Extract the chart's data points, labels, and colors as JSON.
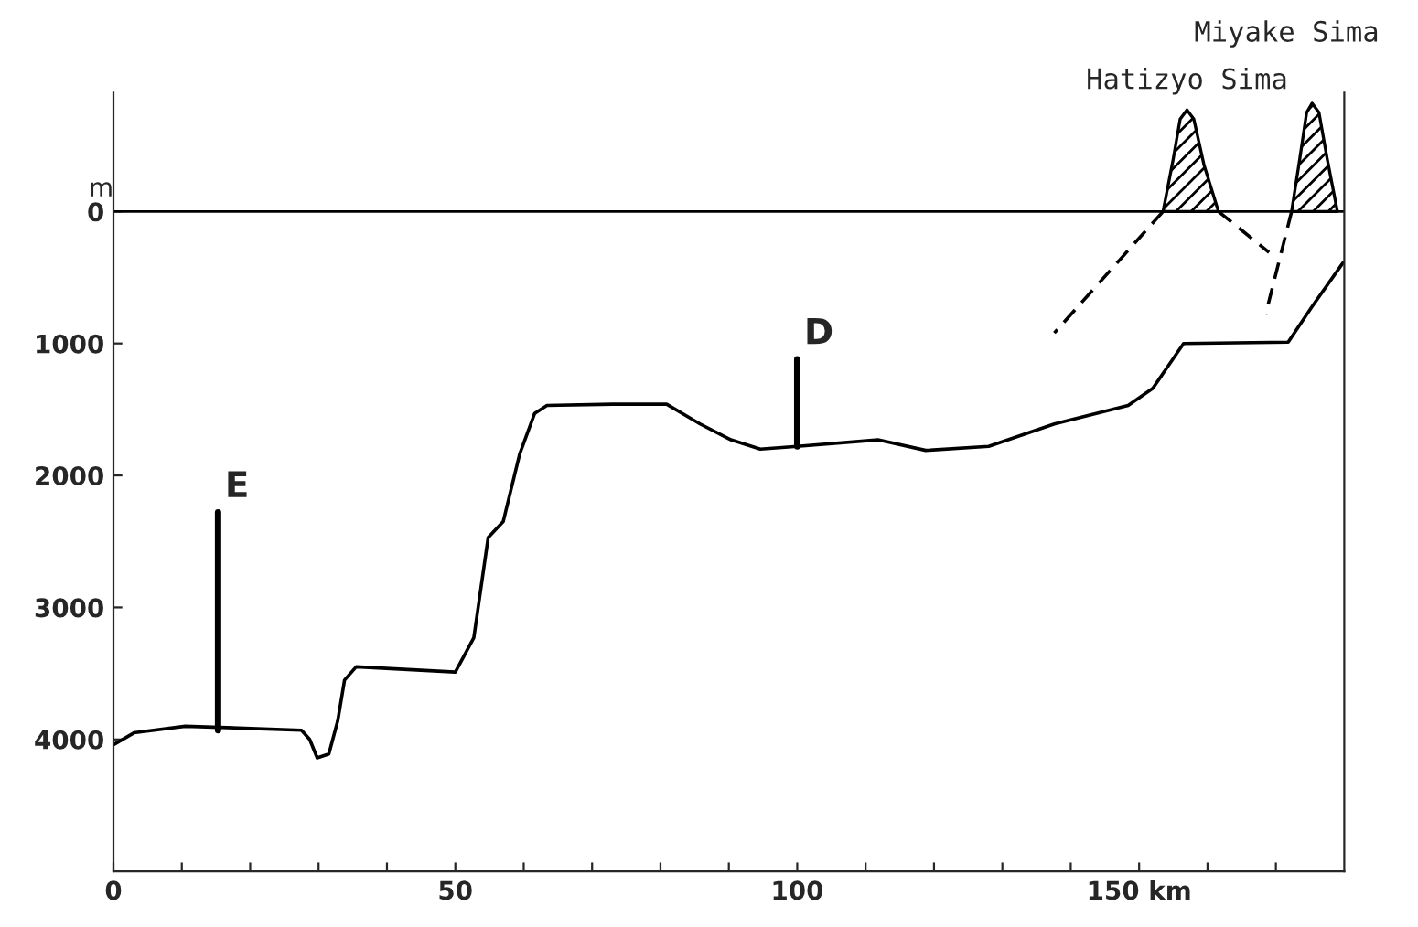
{
  "chart_data": {
    "type": "line",
    "ylabel": "m",
    "xlim": [
      0,
      180
    ],
    "ylim": [
      5000,
      -900
    ],
    "xticks": [
      0,
      {
        "value": 10,
        "label": null
      },
      {
        "value": 20,
        "label": null
      },
      {
        "value": 30,
        "label": null
      },
      {
        "value": 40,
        "label": null
      },
      50,
      {
        "value": 60,
        "label": null
      },
      {
        "value": 70,
        "label": null
      },
      {
        "value": 80,
        "label": null
      },
      {
        "value": 90,
        "label": null
      },
      100,
      {
        "value": 110,
        "label": null
      },
      {
        "value": 120,
        "label": null
      },
      {
        "value": 130,
        "label": null
      },
      {
        "value": 140,
        "label": null
      },
      {
        "value": 150,
        "label": "150 km"
      },
      {
        "value": 160,
        "label": null
      },
      {
        "value": 170,
        "label": null
      }
    ],
    "yticks": [
      0,
      1000,
      2000,
      3000,
      4000
    ],
    "ref_lines": [
      {
        "axis": "y",
        "value": 0,
        "color": "#000000"
      }
    ],
    "series": [
      {
        "color": "#000000",
        "x": [
          0,
          3,
          10.5,
          27.5,
          28.7,
          29.8,
          31.5,
          32.8,
          33.8,
          35.5,
          50,
          52.7,
          54.8,
          57,
          59.4,
          61.6,
          63.4,
          73,
          80.9,
          85.8,
          90.3,
          94.6,
          100,
          111.8,
          118.8,
          128,
          137.6,
          148.4,
          152,
          156.5,
          171.8,
          175.3,
          179.8
        ],
        "values": [
          4040,
          3950,
          3900,
          3930,
          4000,
          4140,
          4110,
          3860,
          3550,
          3450,
          3490,
          3230,
          2470,
          2350,
          1840,
          1530,
          1470,
          1460,
          1460,
          1610,
          1730,
          1800,
          1780,
          1730,
          1810,
          1780,
          1610,
          1470,
          1340,
          1000,
          990,
          720,
          390
        ]
      },
      {
        "type": "area",
        "color": "#000000",
        "x": [
          153.5,
          155,
          156,
          157,
          158,
          159.5,
          161.6
        ],
        "values": [
          0,
          -400,
          -700,
          -770,
          -700,
          -350,
          0
        ]
      },
      {
        "type": "area",
        "color": "#000000",
        "x": [
          172.3,
          173.5,
          174.5,
          175.3,
          176.3,
          177.5,
          179
        ],
        "values": [
          0,
          -400,
          -750,
          -820,
          -750,
          -400,
          0
        ]
      },
      {
        "color": "#000000",
        "line_style": "dashed",
        "x": [
          153.5,
          137.6
        ],
        "values": [
          0,
          920
        ]
      },
      {
        "color": "#000000",
        "line_style": "dashed",
        "x": [
          161.6,
          169
        ],
        "values": [
          0,
          310
        ]
      },
      {
        "color": "#000000",
        "line_style": "dashed",
        "x": [
          172.3,
          168.5
        ],
        "values": [
          0,
          780
        ]
      },
      {
        "name": "E",
        "color": "#000000",
        "x": [
          15.3,
          15.3
        ],
        "values": [
          3930,
          2280
        ]
      },
      {
        "name": "D",
        "color": "#000000",
        "x": [
          100,
          100
        ],
        "values": [
          1780,
          1120
        ]
      }
    ],
    "annotations": [
      {
        "text": "Hatizyo Sima",
        "x": 157,
        "y": -770
      },
      {
        "text": "Miyake Sima",
        "x": 175.3,
        "y": -820
      }
    ]
  }
}
